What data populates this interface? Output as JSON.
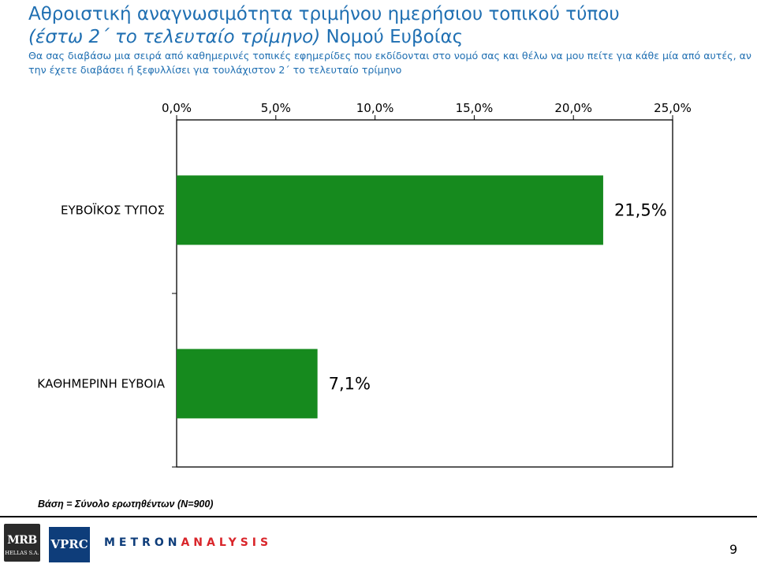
{
  "header": {
    "title_line1": "Αθροιστική αναγνωσιμότητα τριμήνου ημερήσιου τοπικού τύπου",
    "title_line2_italic": "(έστω 2΄ το τελευταίο τρίμηνο)",
    "title_line2_rest": " Νομού Ευβοίας",
    "subtitle": "Θα σας διαβάσω μια σειρά από καθημερινές τοπικές εφημερίδες που εκδίδονται στο νομό σας και θέλω να μου πείτε για κάθε μία από αυτές, αν την έχετε διαβάσει ή ξεφυλλίσει για τουλάχιστον 2΄ το τελευταίο τρίμηνο"
  },
  "chart_data": {
    "type": "bar",
    "orientation": "horizontal",
    "categories": [
      "ΕΥΒΟΪΚΟΣ ΤΥΠΟΣ",
      "ΚΑΘΗΜΕΡΙΝΗ ΕΥΒΟΙΑ"
    ],
    "values": [
      21.5,
      7.1
    ],
    "data_labels": [
      "21,5%",
      "7,1%"
    ],
    "x_ticks": [
      "0,0%",
      "5,0%",
      "10,0%",
      "15,0%",
      "20,0%",
      "25,0%"
    ],
    "xlim": [
      0,
      25
    ],
    "axis_position": "top",
    "grid": false,
    "bar_color": "#168a1e"
  },
  "footer": {
    "base_note": "Βάση = Σύνολο ερωτηθέντων (N=900)",
    "logo_mrb": "MRB",
    "logo_mrb_sub": "HELLAS S.A.",
    "logo_vprc": "VPRC",
    "logo_metron_a": "METRON",
    "logo_metron_b": "ANALYSIS",
    "page_number": "9"
  }
}
